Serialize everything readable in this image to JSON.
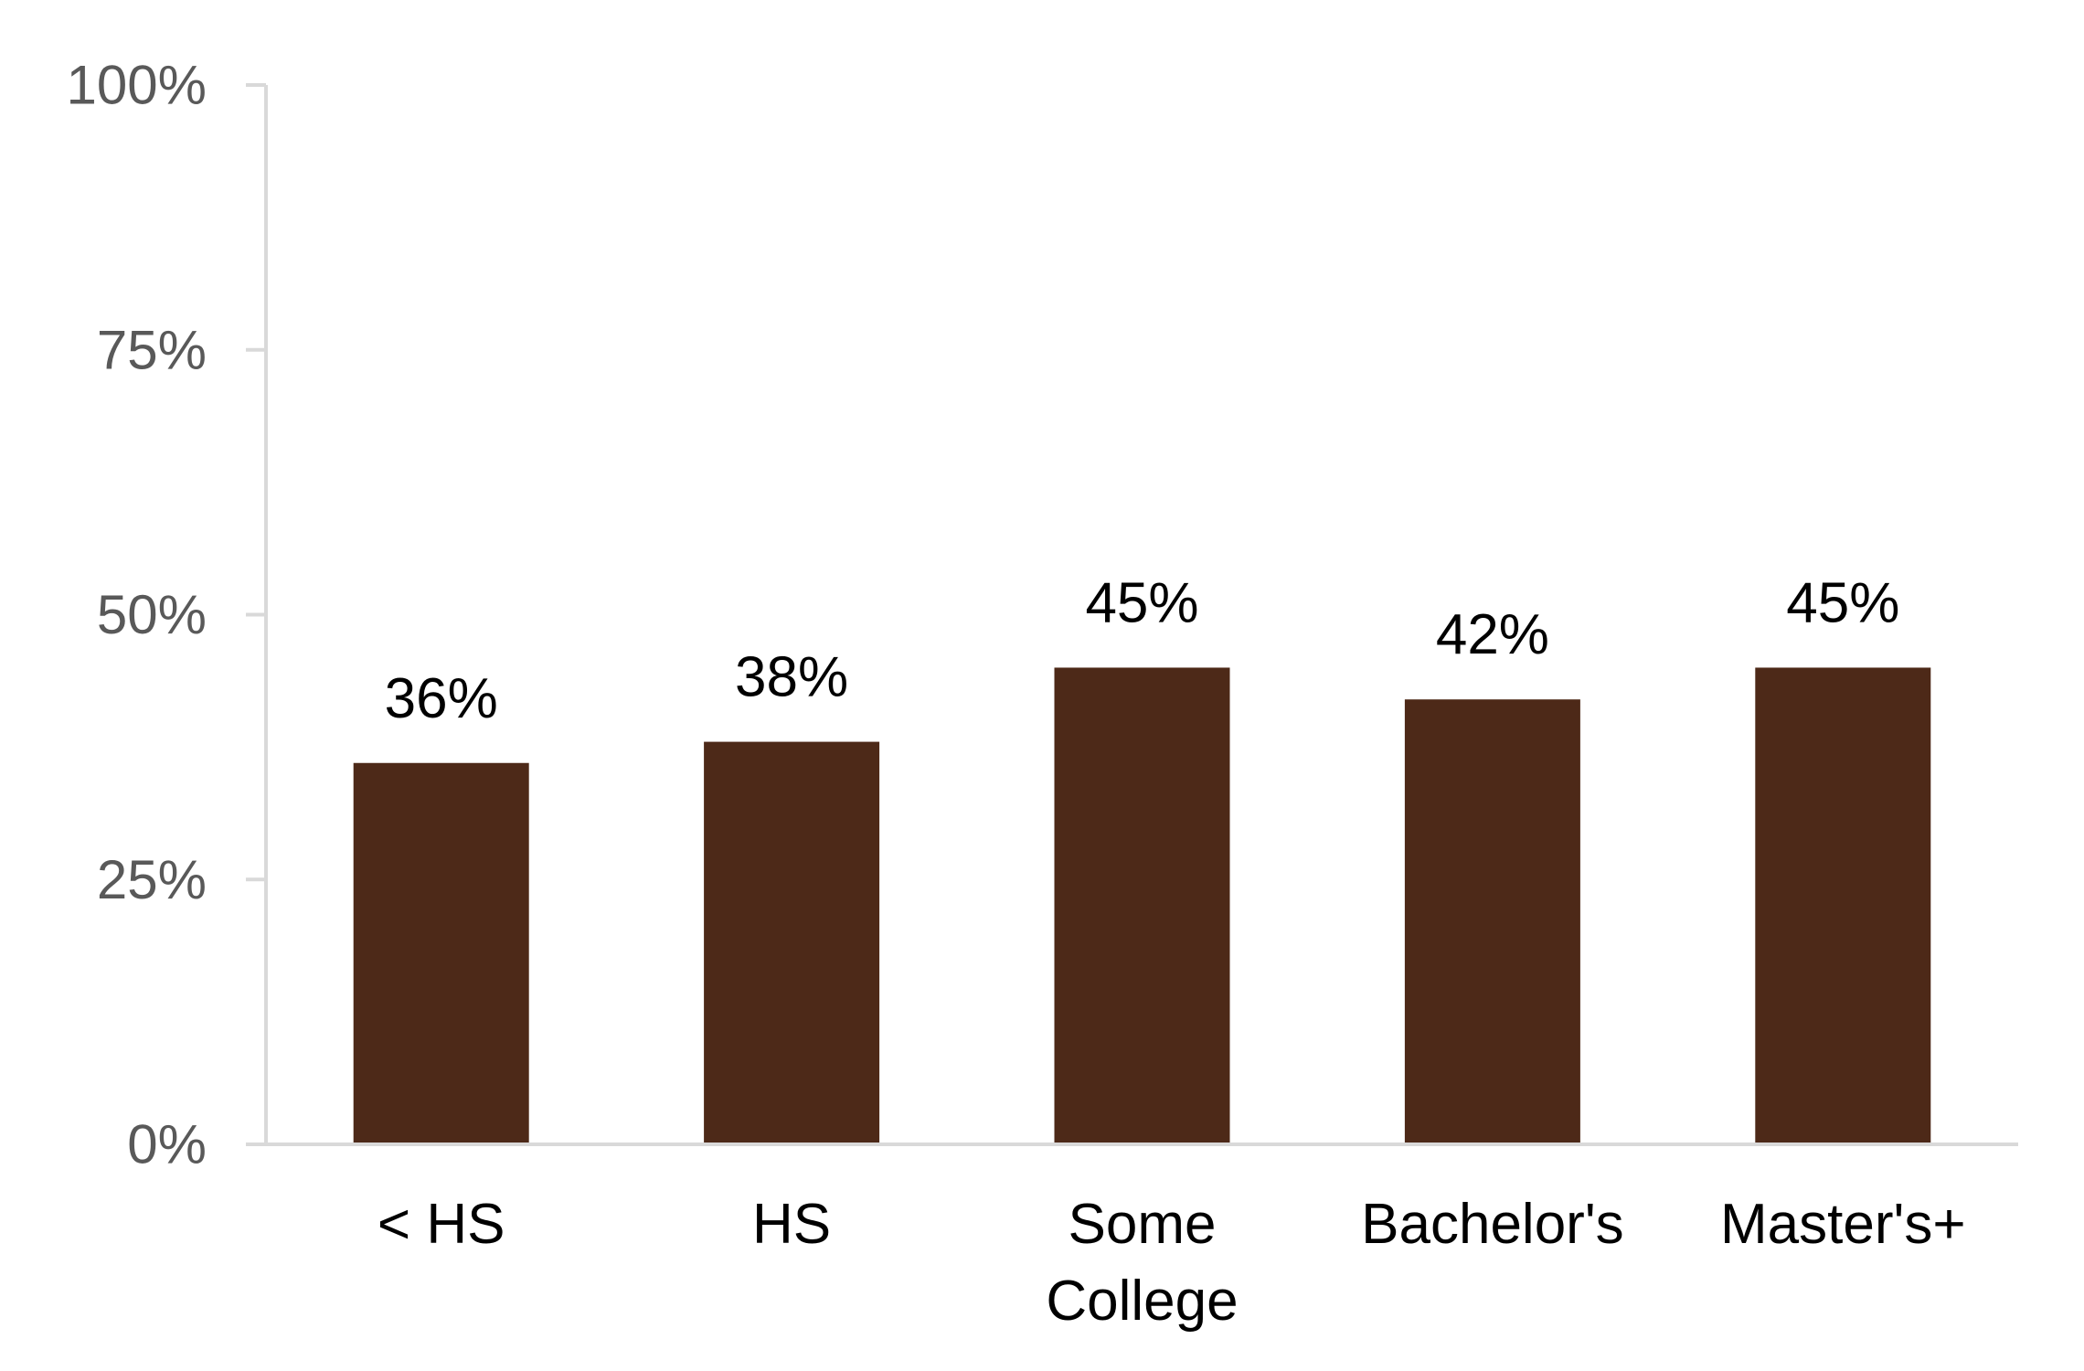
{
  "chart_data": {
    "type": "bar",
    "categories": [
      "< HS",
      "HS",
      "Some College",
      "Bachelor's",
      "Master's+"
    ],
    "category_lines": [
      [
        "< HS"
      ],
      [
        "HS"
      ],
      [
        "Some",
        "College"
      ],
      [
        "Bachelor's"
      ],
      [
        "Master's+"
      ]
    ],
    "values": [
      36,
      38,
      45,
      42,
      45
    ],
    "data_labels": [
      "36%",
      "38%",
      "45%",
      "42%",
      "45%"
    ],
    "ylim": [
      0,
      100
    ],
    "yticks": [
      0,
      25,
      50,
      75,
      100
    ],
    "ytick_labels": [
      "0%",
      "25%",
      "50%",
      "75%",
      "100%"
    ],
    "title": "",
    "xlabel": "",
    "ylabel": "",
    "grid": false,
    "legend": "none",
    "colors": {
      "bar": "#4D2918",
      "axis": "#D9D9D9",
      "tick_text": "#595959",
      "label_text": "#000000"
    }
  }
}
